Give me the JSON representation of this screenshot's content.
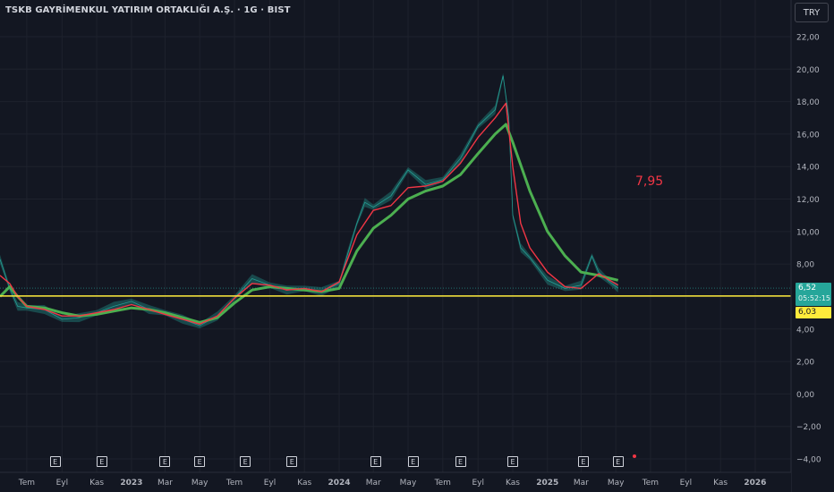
{
  "header": {
    "title": "TSKB GAYRİMENKUL YATIRIM ORTAKLIĞI A.Ş. · 1G · BIST",
    "currency": "TRY"
  },
  "annotation": {
    "text": "7,95",
    "color": "#f23645"
  },
  "price_tags": {
    "last_price": "6,52",
    "countdown": "05:52:15",
    "support": "6,03"
  },
  "earnings_marker_label": "E",
  "colors": {
    "background": "#131722",
    "grid": "#1e222d",
    "candle_up": "#26a69a",
    "candle_down": "#ef5350",
    "ma_slow": "#4caf50",
    "ma_fast": "#f23645",
    "support_line": "#ffeb3b",
    "axis_text": "#b2b5be"
  },
  "chart_data": {
    "type": "line",
    "title": "TSKB GAYRİMENKUL YATIRIM ORTAKLIĞI A.Ş. · 1G · BIST",
    "y_axis_position": "right",
    "ylim": [
      -4.5,
      23
    ],
    "y_ticks": [
      22,
      20,
      18,
      16,
      14,
      12,
      10,
      8,
      6,
      4,
      2,
      0,
      -2,
      -4
    ],
    "y_tick_labels": [
      "22,00",
      "20,00",
      "18,00",
      "16,00",
      "14,00",
      "12,00",
      "10,00",
      "8,00",
      "6,00",
      "4,00",
      "2,00",
      "0,00",
      "−2,00",
      "−4,00"
    ],
    "x_ticks": [
      {
        "label": "Tem",
        "date": "2022-07-01",
        "bold": false
      },
      {
        "label": "Eyl",
        "date": "2022-09-01",
        "bold": false
      },
      {
        "label": "Kas",
        "date": "2022-11-01",
        "bold": false
      },
      {
        "label": "2023",
        "date": "2023-01-01",
        "bold": true
      },
      {
        "label": "Mar",
        "date": "2023-03-01",
        "bold": false
      },
      {
        "label": "May",
        "date": "2023-05-01",
        "bold": false
      },
      {
        "label": "Tem",
        "date": "2023-07-01",
        "bold": false
      },
      {
        "label": "Eyl",
        "date": "2023-09-01",
        "bold": false
      },
      {
        "label": "Kas",
        "date": "2023-11-01",
        "bold": false
      },
      {
        "label": "2024",
        "date": "2024-01-01",
        "bold": true
      },
      {
        "label": "Mar",
        "date": "2024-03-01",
        "bold": false
      },
      {
        "label": "May",
        "date": "2024-05-01",
        "bold": false
      },
      {
        "label": "Tem",
        "date": "2024-07-01",
        "bold": false
      },
      {
        "label": "Eyl",
        "date": "2024-09-01",
        "bold": false
      },
      {
        "label": "Kas",
        "date": "2024-11-01",
        "bold": false
      },
      {
        "label": "2025",
        "date": "2025-01-01",
        "bold": true
      },
      {
        "label": "Mar",
        "date": "2025-03-01",
        "bold": false
      },
      {
        "label": "May",
        "date": "2025-05-01",
        "bold": false
      },
      {
        "label": "Tem",
        "date": "2025-07-01",
        "bold": false
      },
      {
        "label": "Eyl",
        "date": "2025-09-01",
        "bold": false
      },
      {
        "label": "Kas",
        "date": "2025-11-01",
        "bold": false
      },
      {
        "label": "2026",
        "date": "2026-01-01",
        "bold": true
      }
    ],
    "x_range": [
      "2022-05-15",
      "2026-03-05"
    ],
    "support_level": 6.03,
    "last_price": 6.52,
    "series": [
      {
        "type": "area-band",
        "color": "#26a69a",
        "points": [
          [
            "2022-05-15",
            8.3
          ],
          [
            "2022-06-01",
            6.5
          ],
          [
            "2022-06-15",
            5.4
          ],
          [
            "2022-07-01",
            5.3
          ],
          [
            "2022-08-01",
            5.2
          ],
          [
            "2022-09-01",
            4.6
          ],
          [
            "2022-10-01",
            4.7
          ],
          [
            "2022-11-01",
            5.0
          ],
          [
            "2022-12-01",
            5.4
          ],
          [
            "2023-01-01",
            5.7
          ],
          [
            "2023-02-01",
            5.2
          ],
          [
            "2023-03-01",
            5.0
          ],
          [
            "2023-04-01",
            4.6
          ],
          [
            "2023-05-01",
            4.2
          ],
          [
            "2023-06-01",
            4.8
          ],
          [
            "2023-07-01",
            5.9
          ],
          [
            "2023-08-01",
            7.1
          ],
          [
            "2023-09-01",
            6.7
          ],
          [
            "2023-10-01",
            6.4
          ],
          [
            "2023-11-01",
            6.5
          ],
          [
            "2023-12-01",
            6.3
          ],
          [
            "2024-01-01",
            6.8
          ],
          [
            "2024-01-15",
            8.5
          ],
          [
            "2024-02-01",
            10.5
          ],
          [
            "2024-02-15",
            11.8
          ],
          [
            "2024-03-01",
            11.5
          ],
          [
            "2024-04-01",
            12.2
          ],
          [
            "2024-05-01",
            13.8
          ],
          [
            "2024-06-01",
            12.9
          ],
          [
            "2024-07-01",
            13.2
          ],
          [
            "2024-08-01",
            14.5
          ],
          [
            "2024-09-01",
            16.5
          ],
          [
            "2024-10-01",
            17.5
          ],
          [
            "2024-10-15",
            19.6
          ],
          [
            "2024-10-25",
            17.0
          ],
          [
            "2024-11-01",
            11.0
          ],
          [
            "2024-11-15",
            9.0
          ],
          [
            "2024-12-01",
            8.4
          ],
          [
            "2025-01-01",
            7.0
          ],
          [
            "2025-02-01",
            6.5
          ],
          [
            "2025-03-01",
            6.7
          ],
          [
            "2025-03-20",
            8.5
          ],
          [
            "2025-04-01",
            7.5
          ],
          [
            "2025-04-20",
            6.9
          ],
          [
            "2025-05-05",
            6.52
          ]
        ]
      },
      {
        "name": "",
        "color": "#4caf50",
        "points": [
          [
            "2022-05-15",
            6.0
          ],
          [
            "2022-06-01",
            6.6
          ],
          [
            "2022-06-15",
            6.0
          ],
          [
            "2022-07-01",
            5.4
          ],
          [
            "2022-08-01",
            5.3
          ],
          [
            "2022-09-01",
            5.0
          ],
          [
            "2022-10-01",
            4.8
          ],
          [
            "2022-11-01",
            4.9
          ],
          [
            "2022-12-01",
            5.1
          ],
          [
            "2023-01-01",
            5.3
          ],
          [
            "2023-02-01",
            5.2
          ],
          [
            "2023-03-01",
            5.0
          ],
          [
            "2023-04-01",
            4.7
          ],
          [
            "2023-05-01",
            4.4
          ],
          [
            "2023-06-01",
            4.7
          ],
          [
            "2023-07-01",
            5.6
          ],
          [
            "2023-08-01",
            6.4
          ],
          [
            "2023-09-01",
            6.6
          ],
          [
            "2023-10-01",
            6.5
          ],
          [
            "2023-11-01",
            6.4
          ],
          [
            "2023-12-01",
            6.3
          ],
          [
            "2024-01-01",
            6.5
          ],
          [
            "2024-02-01",
            8.8
          ],
          [
            "2024-03-01",
            10.2
          ],
          [
            "2024-04-01",
            11.0
          ],
          [
            "2024-05-01",
            12.0
          ],
          [
            "2024-06-01",
            12.5
          ],
          [
            "2024-07-01",
            12.8
          ],
          [
            "2024-08-01",
            13.5
          ],
          [
            "2024-09-01",
            14.8
          ],
          [
            "2024-10-01",
            16.0
          ],
          [
            "2024-10-20",
            16.6
          ],
          [
            "2024-11-01",
            15.5
          ],
          [
            "2024-12-01",
            12.5
          ],
          [
            "2025-01-01",
            10.0
          ],
          [
            "2025-02-01",
            8.5
          ],
          [
            "2025-03-01",
            7.5
          ],
          [
            "2025-04-01",
            7.3
          ],
          [
            "2025-05-05",
            7.0
          ]
        ]
      },
      {
        "name": "",
        "color": "#f23645",
        "points": [
          [
            "2022-05-15",
            7.3
          ],
          [
            "2022-06-01",
            6.8
          ],
          [
            "2022-06-15",
            6.0
          ],
          [
            "2022-07-01",
            5.4
          ],
          [
            "2022-08-01",
            5.2
          ],
          [
            "2022-09-01",
            4.8
          ],
          [
            "2022-10-01",
            4.8
          ],
          [
            "2022-11-01",
            5.0
          ],
          [
            "2022-12-01",
            5.2
          ],
          [
            "2023-01-01",
            5.5
          ],
          [
            "2023-02-01",
            5.2
          ],
          [
            "2023-03-01",
            4.9
          ],
          [
            "2023-04-01",
            4.6
          ],
          [
            "2023-05-01",
            4.3
          ],
          [
            "2023-06-01",
            4.8
          ],
          [
            "2023-07-01",
            5.9
          ],
          [
            "2023-08-01",
            6.8
          ],
          [
            "2023-09-01",
            6.7
          ],
          [
            "2023-10-01",
            6.4
          ],
          [
            "2023-11-01",
            6.5
          ],
          [
            "2023-12-01",
            6.3
          ],
          [
            "2024-01-01",
            6.9
          ],
          [
            "2024-02-01",
            9.8
          ],
          [
            "2024-03-01",
            11.3
          ],
          [
            "2024-04-01",
            11.6
          ],
          [
            "2024-05-01",
            12.7
          ],
          [
            "2024-06-01",
            12.8
          ],
          [
            "2024-07-01",
            13.1
          ],
          [
            "2024-08-01",
            14.2
          ],
          [
            "2024-09-01",
            15.8
          ],
          [
            "2024-10-01",
            17.0
          ],
          [
            "2024-10-20",
            17.9
          ],
          [
            "2024-11-01",
            14.0
          ],
          [
            "2024-11-15",
            10.5
          ],
          [
            "2024-12-01",
            9.0
          ],
          [
            "2025-01-01",
            7.5
          ],
          [
            "2025-02-01",
            6.6
          ],
          [
            "2025-03-01",
            6.5
          ],
          [
            "2025-04-01",
            7.4
          ],
          [
            "2025-05-05",
            6.7
          ]
        ]
      }
    ],
    "earnings_dates": [
      "2022-08-20",
      "2022-11-10",
      "2023-03-01",
      "2023-05-01",
      "2023-07-20",
      "2023-10-10",
      "2024-03-05",
      "2024-05-10",
      "2024-08-01",
      "2024-11-01",
      "2025-03-05",
      "2025-05-05"
    ]
  }
}
